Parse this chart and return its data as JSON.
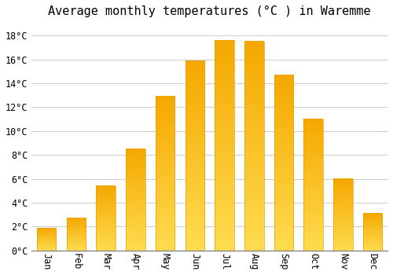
{
  "title": "Average monthly temperatures (°C ) in Waremme",
  "months": [
    "Jan",
    "Feb",
    "Mar",
    "Apr",
    "May",
    "Jun",
    "Jul",
    "Aug",
    "Sep",
    "Oct",
    "Nov",
    "Dec"
  ],
  "values": [
    1.9,
    2.7,
    5.4,
    8.5,
    12.9,
    15.9,
    17.6,
    17.5,
    14.7,
    11.0,
    6.0,
    3.1
  ],
  "bar_color_bottom": "#F5A800",
  "bar_color_top": "#FFD966",
  "bar_edge_color": "#E8A000",
  "background_color": "#FFFFFF",
  "plot_bg_color": "#FFFFFF",
  "grid_color": "#CCCCCC",
  "ylim": [
    0,
    19
  ],
  "ytick_step": 2,
  "title_fontsize": 11,
  "tick_fontsize": 8.5,
  "font_family": "monospace"
}
